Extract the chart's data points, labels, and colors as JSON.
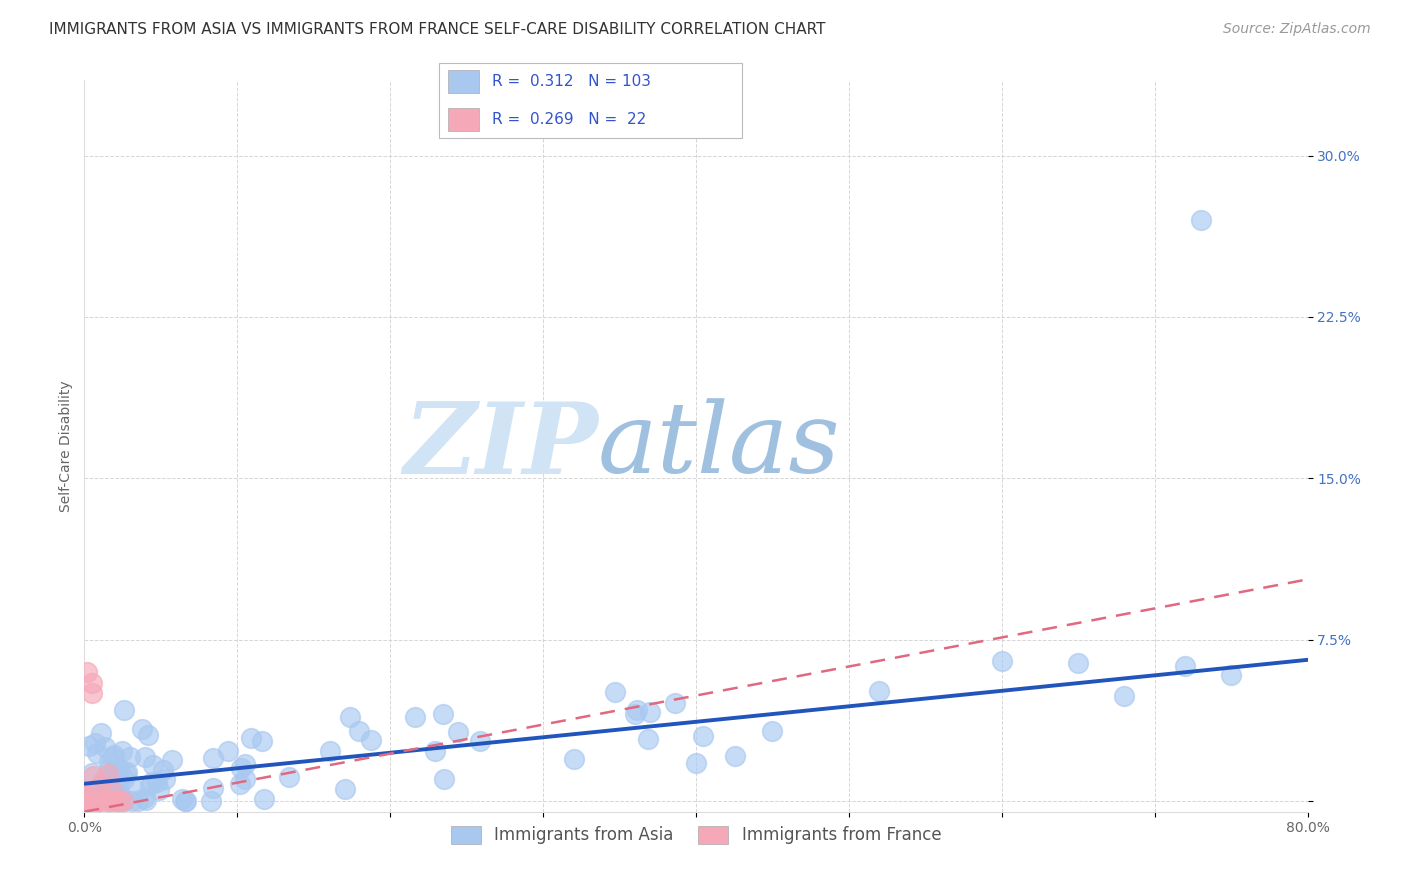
{
  "title": "IMMIGRANTS FROM ASIA VS IMMIGRANTS FROM FRANCE SELF-CARE DISABILITY CORRELATION CHART",
  "source": "Source: ZipAtlas.com",
  "ylabel": "Self-Care Disability",
  "xlim": [
    0.0,
    0.8
  ],
  "ylim": [
    -0.005,
    0.335
  ],
  "asia_R": 0.312,
  "asia_N": 103,
  "france_R": 0.269,
  "france_N": 22,
  "asia_color": "#a8c8f0",
  "france_color": "#f5a8b8",
  "asia_line_color": "#2255bb",
  "france_line_color": "#e06880",
  "watermark_zip": "ZIP",
  "watermark_atlas": "atlas",
  "watermark_color_zip": "#c8ddf5",
  "watermark_color_atlas": "#8ab8e0",
  "title_fontsize": 11,
  "source_fontsize": 10,
  "axis_label_fontsize": 10,
  "tick_fontsize": 10,
  "legend_fontsize": 11,
  "asia_line_intercept": 0.008,
  "asia_line_slope": 0.072,
  "france_line_intercept": -0.005,
  "france_line_slope": 0.135
}
